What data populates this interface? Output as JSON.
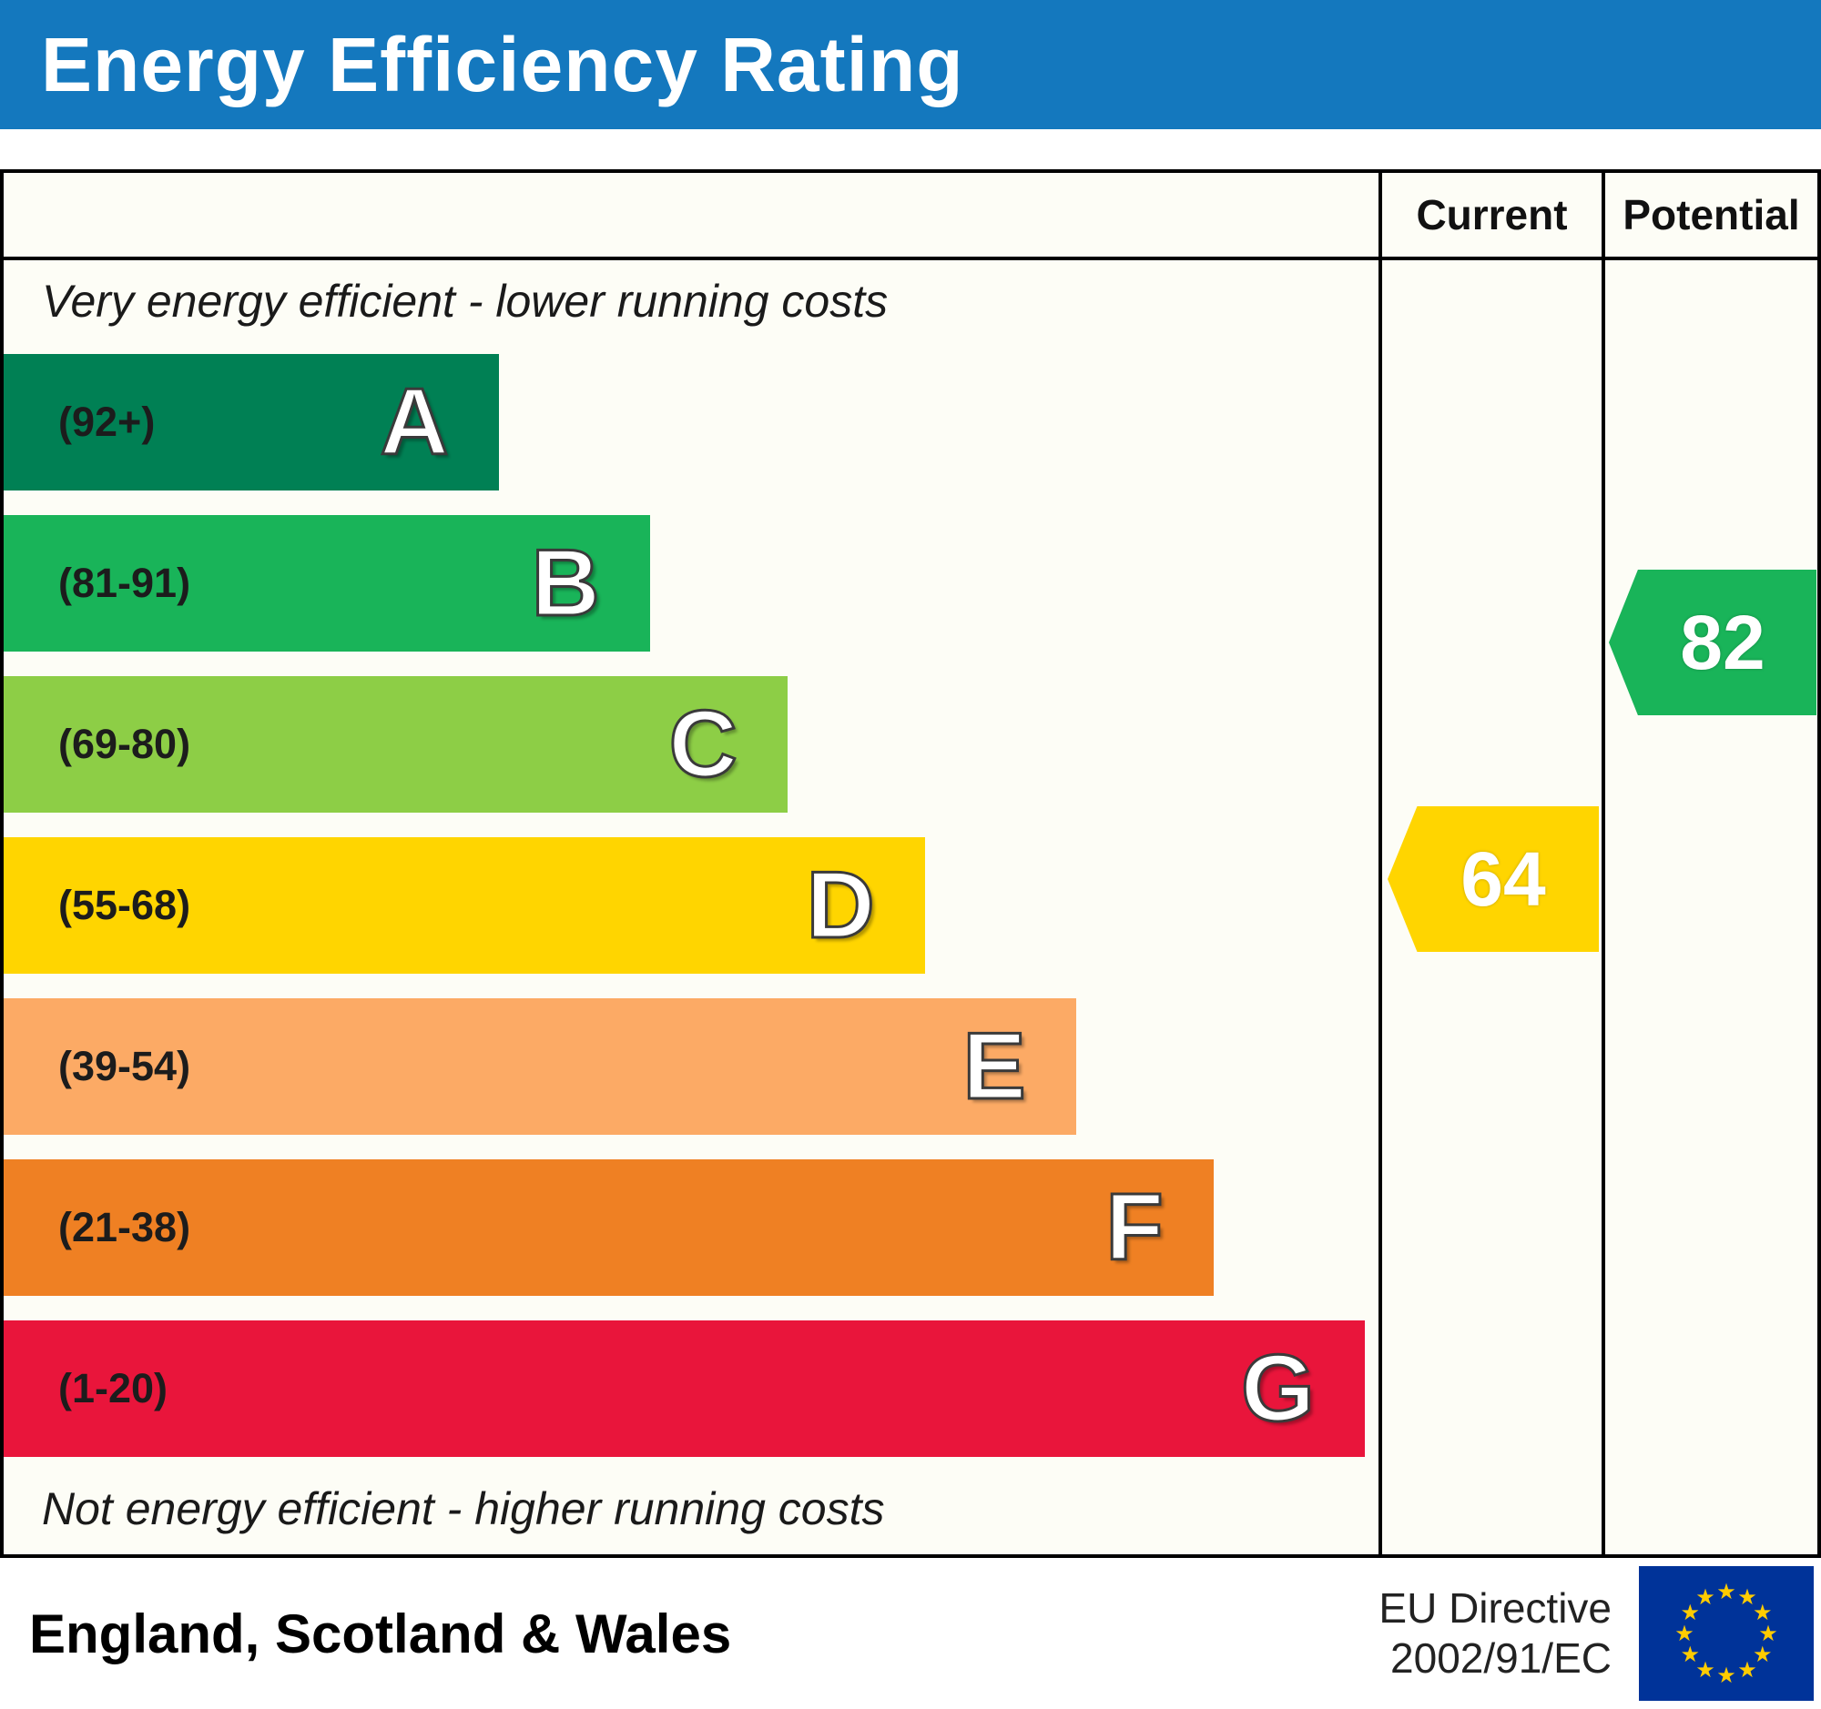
{
  "title": "Energy Efficiency Rating",
  "colors": {
    "title_bar": "#1478be",
    "eu_flag_blue": "#003399",
    "eu_flag_star": "#ffcc00"
  },
  "columns": {
    "current_label": "Current",
    "potential_label": "Potential"
  },
  "notes": {
    "top": "Very energy efficient - lower running costs",
    "bottom": "Not energy efficient - higher running costs"
  },
  "ratings": {
    "current": {
      "value": 64,
      "band": "D",
      "color": "#ffd500"
    },
    "potential": {
      "value": 82,
      "band": "B",
      "color": "#19b459"
    }
  },
  "footer": {
    "region": "England, Scotland & Wales",
    "directive_line1": "EU Directive",
    "directive_line2": "2002/91/EC"
  },
  "chart_data": {
    "type": "bar",
    "title": "Energy Efficiency Rating",
    "legend_position": "none",
    "grid": false,
    "bands": [
      {
        "letter": "A",
        "range": "(92+)",
        "min": 92,
        "max": 100,
        "color": "#008054",
        "width_pct": 36
      },
      {
        "letter": "B",
        "range": "(81-91)",
        "min": 81,
        "max": 91,
        "color": "#19b459",
        "width_pct": 47
      },
      {
        "letter": "C",
        "range": "(69-80)",
        "min": 69,
        "max": 80,
        "color": "#8dce46",
        "width_pct": 57
      },
      {
        "letter": "D",
        "range": "(55-68)",
        "min": 55,
        "max": 68,
        "color": "#ffd500",
        "width_pct": 67
      },
      {
        "letter": "E",
        "range": "(39-54)",
        "min": 39,
        "max": 54,
        "color": "#fcaa65",
        "width_pct": 78
      },
      {
        "letter": "F",
        "range": "(21-38)",
        "min": 21,
        "max": 38,
        "color": "#ef8023",
        "width_pct": 88
      },
      {
        "letter": "G",
        "range": "(1-20)",
        "min": 1,
        "max": 20,
        "color": "#e9153b",
        "width_pct": 99
      }
    ],
    "current": 64,
    "potential": 82
  }
}
